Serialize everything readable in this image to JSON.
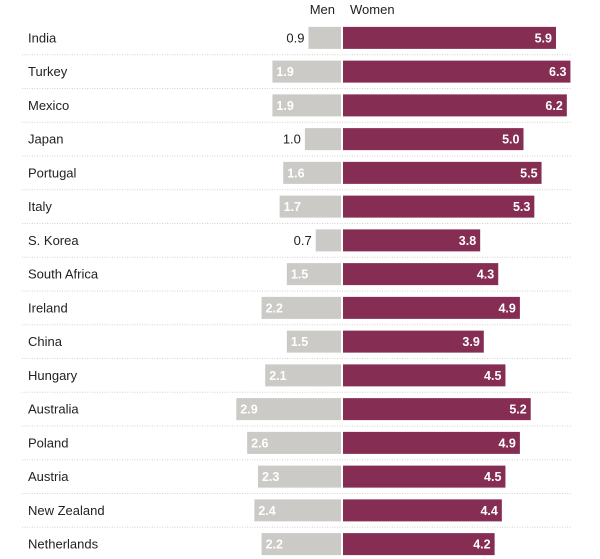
{
  "chart_data": {
    "type": "bar",
    "layout": "diverging-horizontal",
    "series": [
      {
        "name": "Men",
        "color": "#cbcac6",
        "values": [
          0.9,
          1.9,
          1.9,
          1.0,
          1.6,
          1.7,
          0.7,
          1.5,
          2.2,
          1.5,
          2.1,
          2.9,
          2.6,
          2.3,
          2.4,
          2.2
        ]
      },
      {
        "name": "Women",
        "color": "#852d52",
        "values": [
          5.9,
          6.3,
          6.2,
          5.0,
          5.5,
          5.3,
          3.8,
          4.3,
          4.9,
          3.9,
          4.5,
          5.2,
          4.9,
          4.5,
          4.4,
          4.2
        ]
      }
    ],
    "categories": [
      "India",
      "Turkey",
      "Mexico",
      "Japan",
      "Portugal",
      "Italy",
      "S. Korea",
      "South Africa",
      "Ireland",
      "China",
      "Hungary",
      "Australia",
      "Poland",
      "Austria",
      "New Zealand",
      "Netherlands"
    ],
    "men_labels": [
      "0.9",
      "1.9",
      "1.9",
      "1.0",
      "1.6",
      "1.7",
      "0.7",
      "1.5",
      "2.2",
      "1.5",
      "2.1",
      "2.9",
      "2.6",
      "2.3",
      "2.4",
      "2.2"
    ],
    "women_labels": [
      "5.9",
      "6.3",
      "6.2",
      "5.0",
      "5.5",
      "5.3",
      "3.8",
      "4.3",
      "4.9",
      "3.9",
      "4.5",
      "5.2",
      "4.9",
      "4.5",
      "4.4",
      "4.2"
    ],
    "title": "",
    "xlabel": "",
    "ylabel": "",
    "grid": false,
    "legend": "top-center"
  }
}
